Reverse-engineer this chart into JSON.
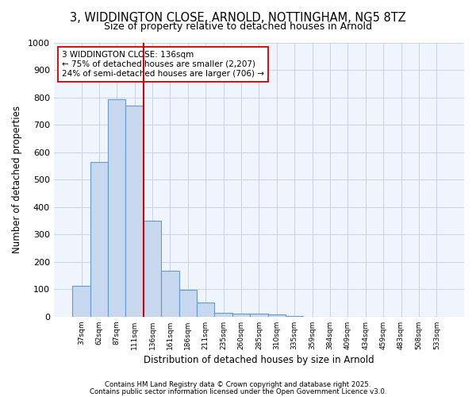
{
  "title_line1": "3, WIDDINGTON CLOSE, ARNOLD, NOTTINGHAM, NG5 8TZ",
  "title_line2": "Size of property relative to detached houses in Arnold",
  "xlabel": "Distribution of detached houses by size in Arnold",
  "ylabel": "Number of detached properties",
  "categories": [
    "37sqm",
    "62sqm",
    "87sqm",
    "111sqm",
    "136sqm",
    "161sqm",
    "186sqm",
    "211sqm",
    "235sqm",
    "260sqm",
    "285sqm",
    "310sqm",
    "335sqm",
    "359sqm",
    "384sqm",
    "409sqm",
    "434sqm",
    "459sqm",
    "483sqm",
    "508sqm",
    "533sqm"
  ],
  "values": [
    113,
    565,
    795,
    770,
    350,
    168,
    98,
    52,
    15,
    12,
    10,
    7,
    2,
    0,
    0,
    0,
    0,
    0,
    0,
    0,
    0
  ],
  "bar_color": "#c8d8ee",
  "bar_edge_color": "#6699cc",
  "grid_color": "#c8d4e8",
  "vline_color": "#cc0000",
  "annotation_text": "3 WIDDINGTON CLOSE: 136sqm\n← 75% of detached houses are smaller (2,207)\n24% of semi-detached houses are larger (706) →",
  "annotation_box_color": "white",
  "annotation_box_edge": "#cc0000",
  "ylim": [
    0,
    1000
  ],
  "yticks": [
    0,
    100,
    200,
    300,
    400,
    500,
    600,
    700,
    800,
    900,
    1000
  ],
  "plot_bg_color": "#f0f4fc",
  "fig_bg_color": "#ffffff",
  "footer_line1": "Contains HM Land Registry data © Crown copyright and database right 2025.",
  "footer_line2": "Contains public sector information licensed under the Open Government Licence v3.0."
}
